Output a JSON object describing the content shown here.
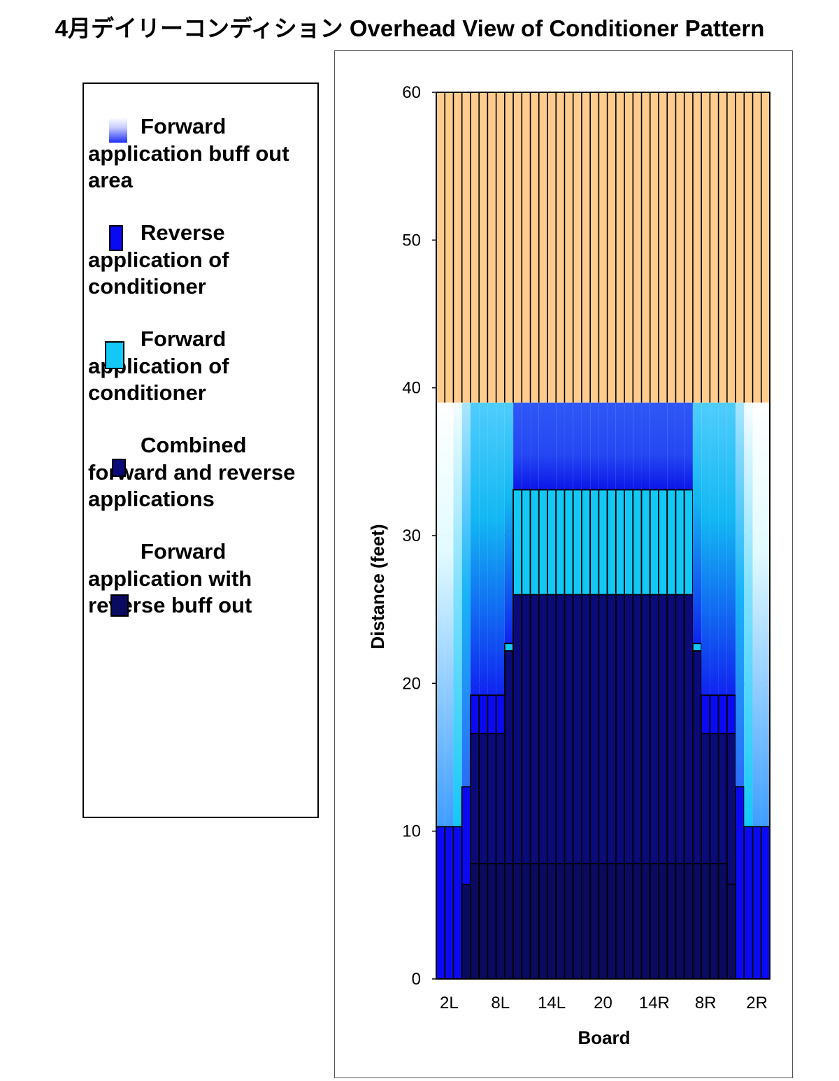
{
  "title": "4月デイリーコンディション Overhead View of Conditioner Pattern",
  "colors": {
    "oil_free": "#FFCC8E",
    "reverse": "#0A0AF2",
    "forward": "#14C8F5",
    "combined": "#0A0A78",
    "forward_rev_buff": "#0A0A60",
    "buff_blue": "#2A4DF7",
    "grid": "#000000"
  },
  "legend": {
    "items": [
      {
        "label": "Forward application buff out area",
        "swatch": "buff-gradient"
      },
      {
        "label": "Reverse application of conditioner",
        "swatch": "reverse"
      },
      {
        "label": "Forward application of conditioner",
        "swatch": "forward"
      },
      {
        "label": "Combined forward and reverse applications",
        "swatch": "combined"
      },
      {
        "label": "Forward application with reverse buff out",
        "swatch": "forward_rev_buff"
      }
    ]
  },
  "chart_data": {
    "type": "bar",
    "title": "",
    "xlabel": "Board",
    "ylabel": "Distance (feet)",
    "ylim": [
      0,
      60
    ],
    "yticks": [
      0,
      10,
      20,
      30,
      40,
      50,
      60
    ],
    "xtick_labels": [
      "2L",
      "8L",
      "14L",
      "20",
      "14R",
      "8R",
      "2R"
    ],
    "boards": [
      "1L",
      "2L",
      "3L",
      "4L",
      "5L",
      "6L",
      "7L",
      "8L",
      "9L",
      "10L",
      "11L",
      "12L",
      "13L",
      "14L",
      "15L",
      "16L",
      "17L",
      "18L",
      "19L",
      "20",
      "19R",
      "18R",
      "17R",
      "16R",
      "15R",
      "14R",
      "13R",
      "12R",
      "11R",
      "10R",
      "9R",
      "8R",
      "7R",
      "6R",
      "5R",
      "4R",
      "3R",
      "2R",
      "1R"
    ],
    "oil_pattern_length": 39,
    "lane_length": 60,
    "series": [
      {
        "name": "Forward application with reverse buff out",
        "values": [
          0,
          0,
          0,
          6.4,
          7.8,
          7.8,
          7.8,
          7.8,
          7.8,
          7.8,
          7.8,
          7.8,
          7.8,
          7.8,
          7.8,
          7.8,
          7.8,
          7.8,
          7.8,
          7.8,
          7.8,
          7.8,
          7.8,
          7.8,
          7.8,
          7.8,
          7.8,
          7.8,
          7.8,
          7.8,
          7.8,
          7.8,
          7.8,
          7.8,
          6.4,
          0,
          0,
          0,
          0
        ]
      },
      {
        "name": "Combined forward and reverse applications",
        "values": [
          0,
          0,
          0,
          0,
          16.6,
          16.6,
          16.6,
          16.6,
          22.2,
          26,
          26,
          26,
          26,
          26,
          26,
          26,
          26,
          26,
          26,
          26,
          26,
          26,
          26,
          26,
          26,
          26,
          26,
          26,
          26,
          26,
          22.2,
          16.6,
          16.6,
          16.6,
          16.6,
          0,
          0,
          0,
          0
        ]
      },
      {
        "name": "Reverse application of conditioner",
        "values": [
          10.3,
          10.3,
          10.3,
          13,
          19.2,
          19.2,
          19.2,
          19.2,
          22.2,
          26,
          26,
          26,
          26,
          26,
          26,
          26,
          26,
          26,
          26,
          26,
          26,
          26,
          26,
          26,
          26,
          26,
          26,
          26,
          26,
          26,
          22.2,
          19.2,
          19.2,
          19.2,
          19.2,
          13,
          10.3,
          10.3,
          10.3
        ]
      },
      {
        "name": "Forward application of conditioner",
        "values": [
          10.3,
          10.3,
          10.3,
          13,
          19.2,
          19.2,
          19.2,
          19.2,
          22.7,
          33.1,
          33.1,
          33.1,
          33.1,
          33.1,
          33.1,
          33.1,
          33.1,
          33.1,
          33.1,
          33.1,
          33.1,
          33.1,
          33.1,
          33.1,
          33.1,
          33.1,
          33.1,
          33.1,
          33.1,
          33.1,
          22.7,
          19.2,
          19.2,
          19.2,
          19.2,
          13,
          10.3,
          10.3,
          10.3
        ]
      },
      {
        "name": "Forward application buff out area",
        "values": [
          39,
          39,
          39,
          39,
          39,
          39,
          39,
          39,
          39,
          39,
          39,
          39,
          39,
          39,
          39,
          39,
          39,
          39,
          39,
          39,
          39,
          39,
          39,
          39,
          39,
          39,
          39,
          39,
          39,
          39,
          39,
          39,
          39,
          39,
          39,
          39,
          39,
          39,
          39
        ]
      }
    ]
  }
}
